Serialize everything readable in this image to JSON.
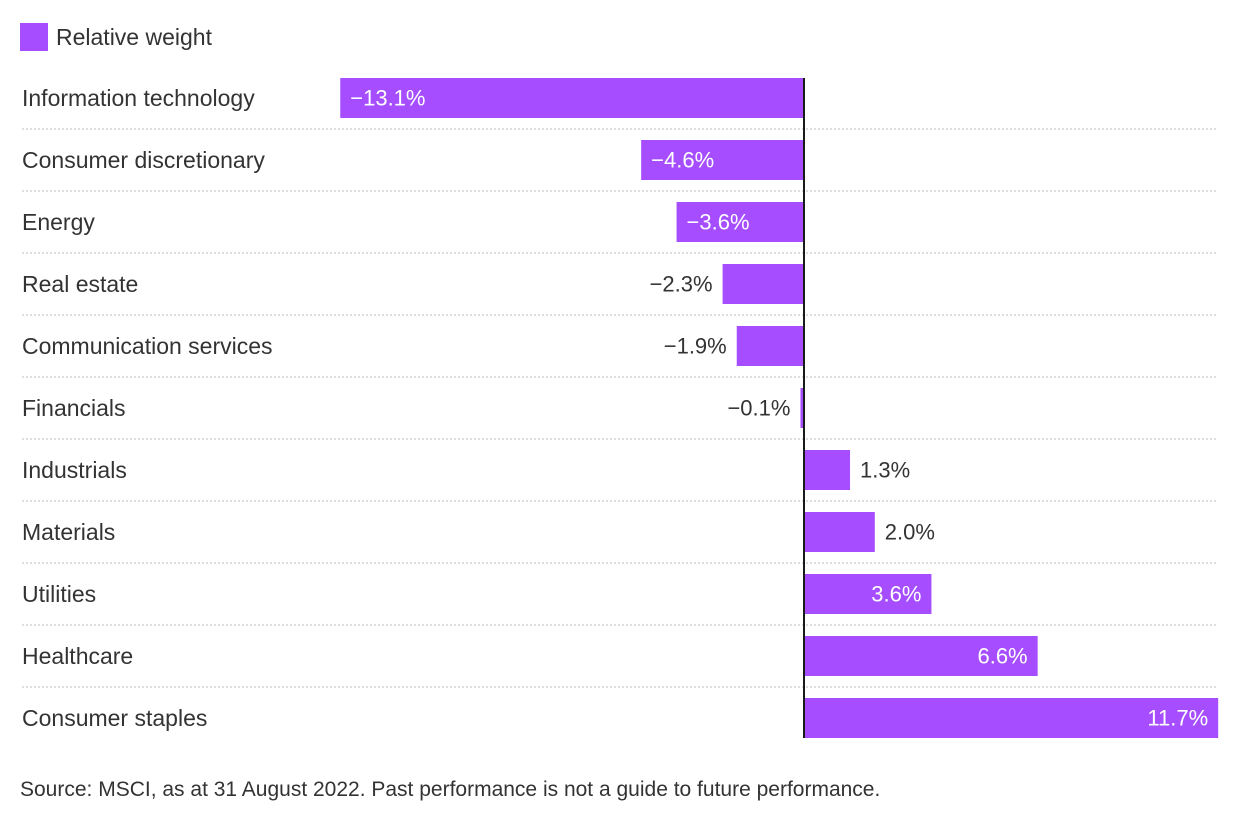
{
  "legend": {
    "label": "Relative weight",
    "color": "#a64dff"
  },
  "chart_data": {
    "type": "bar",
    "orientation": "horizontal",
    "categories": [
      "Information technology",
      "Consumer discretionary",
      "Energy",
      "Real estate",
      "Communication services",
      "Financials",
      "Industrials",
      "Materials",
      "Utilities",
      "Healthcare",
      "Consumer staples"
    ],
    "series": [
      {
        "name": "Relative weight",
        "color": "#a64dff",
        "values": [
          -13.1,
          -4.6,
          -3.6,
          -2.3,
          -1.9,
          -0.1,
          1.3,
          2.0,
          3.6,
          6.6,
          11.7
        ]
      }
    ],
    "data_labels": [
      "−13.1%",
      "−4.6%",
      "−3.6%",
      "−2.3%",
      "−1.9%",
      "−0.1%",
      "1.3%",
      "2.0%",
      "3.6%",
      "6.6%",
      "11.7%"
    ],
    "xlim": [
      -13.1,
      11.7
    ],
    "grid": false,
    "legend_position": "top-left",
    "title": "",
    "xlabel": "",
    "ylabel": ""
  },
  "source": "Source: MSCI, as at 31 August 2022. Past performance is not a guide to future performance."
}
